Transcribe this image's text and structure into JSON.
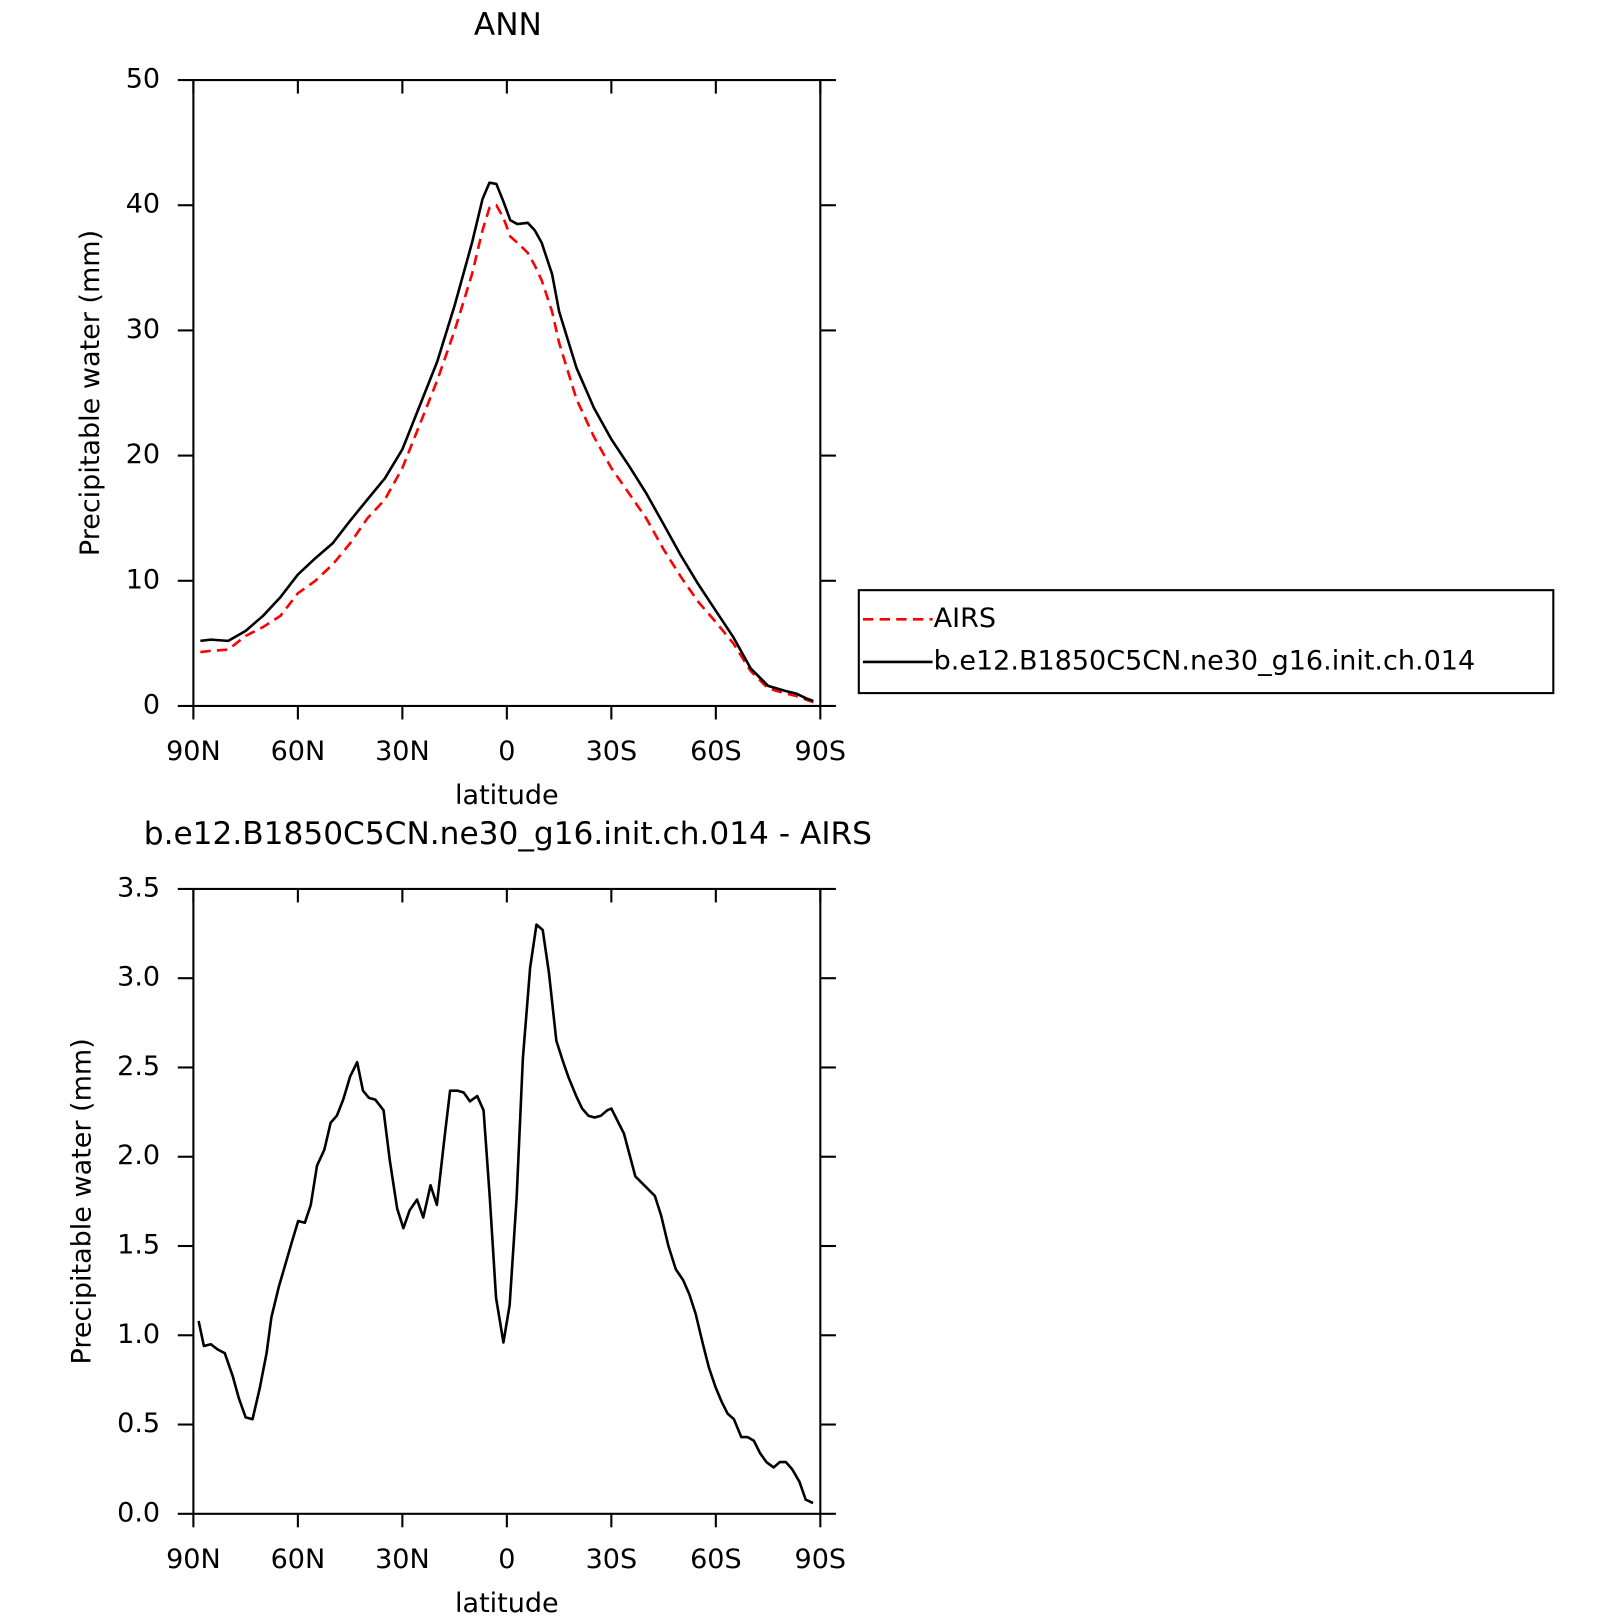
{
  "chart_data": [
    {
      "type": "line",
      "title": "ANN",
      "x_label": "latitude",
      "y_label": "Precipitable water (mm)",
      "x": [
        88,
        85,
        80,
        75,
        70,
        65,
        60,
        55,
        50,
        45,
        40,
        35,
        30,
        25,
        20,
        15,
        10,
        7,
        5,
        3,
        1,
        -1,
        -3,
        -6,
        -8,
        -10,
        -13,
        -15,
        -20,
        -25,
        -30,
        -35,
        -40,
        -45,
        -50,
        -55,
        -60,
        -65,
        -70,
        -75,
        -80,
        -83,
        -86,
        -88
      ],
      "series": [
        {
          "name": "AIRS",
          "color": "#ff0000",
          "line_style": "dashed",
          "values": [
            4.3,
            4.4,
            4.5,
            5.6,
            6.3,
            7.2,
            9.0,
            10.0,
            11.3,
            13.0,
            15.0,
            16.5,
            19.0,
            22.5,
            26.0,
            30.0,
            34.5,
            38.0,
            39.8,
            40.0,
            39.0,
            37.5,
            37.0,
            36.2,
            35.2,
            34.0,
            31.5,
            29.0,
            24.5,
            21.5,
            19.0,
            17.0,
            15.0,
            12.5,
            10.3,
            8.3,
            6.7,
            5.0,
            2.8,
            1.4,
            1.0,
            0.8,
            0.5,
            0.3
          ]
        },
        {
          "name": "b.e12.B1850C5CN.ne30_g16.init.ch.014",
          "color": "#000000",
          "line_style": "solid",
          "values": [
            5.2,
            5.3,
            5.2,
            6.0,
            7.2,
            8.7,
            10.5,
            11.8,
            13.0,
            14.8,
            16.5,
            18.2,
            20.5,
            24.0,
            27.5,
            32.0,
            37.0,
            40.5,
            41.8,
            41.7,
            40.3,
            38.8,
            38.5,
            38.6,
            38.0,
            37.0,
            34.5,
            31.5,
            27.0,
            23.8,
            21.3,
            19.2,
            17.0,
            14.5,
            12.0,
            9.7,
            7.6,
            5.5,
            3.0,
            1.6,
            1.2,
            1.0,
            0.6,
            0.4
          ]
        }
      ],
      "xlim": [
        90,
        -90
      ],
      "xticks": [
        {
          "value": 90,
          "label": "90N"
        },
        {
          "value": 60,
          "label": "60N"
        },
        {
          "value": 30,
          "label": "30N"
        },
        0,
        {
          "value": -30,
          "label": "30S"
        },
        {
          "value": -60,
          "label": "60S"
        },
        {
          "value": -90,
          "label": "90S"
        }
      ],
      "ylim": [
        0,
        50
      ],
      "yticks": [
        0,
        10,
        20,
        30,
        40,
        50
      ],
      "legend_position": "right"
    },
    {
      "type": "line",
      "title": "b.e12.B1850C5CN.ne30_g16.init.ch.014 - AIRS",
      "x_label": "latitude",
      "y_label": "Precipitable water (mm)",
      "x": [
        88.5,
        87,
        85,
        83,
        81,
        78.7,
        77,
        75,
        73,
        71,
        69,
        67.6,
        65.5,
        63.4,
        61.6,
        59.9,
        58,
        56.3,
        54.5,
        52.4,
        50.6,
        48.8,
        47,
        45,
        43,
        41.3,
        39.6,
        37.8,
        35.4,
        33.6,
        31.5,
        29.7,
        27.9,
        25.8,
        24,
        21.9,
        20.1,
        18,
        16.3,
        14.2,
        12.4,
        10.6,
        8.5,
        6.7,
        4.9,
        3.1,
        1,
        -0.8,
        -2.8,
        -4.6,
        -6.7,
        -8.5,
        -10.3,
        -12.1,
        -14.2,
        -16,
        -17.8,
        -19.9,
        -21.6,
        -23.4,
        -25.2,
        -27,
        -28.8,
        -30,
        -33.6,
        -36.9,
        -42.5,
        -44.3,
        -46.4,
        -48.5,
        -50.6,
        -52.4,
        -54.2,
        -56.3,
        -58,
        -59.9,
        -61.6,
        -63.4,
        -65.2,
        -67.3,
        -69.1,
        -70.9,
        -72.7,
        -74.5,
        -76.6,
        -78.4,
        -80.1,
        -81.9,
        -84,
        -85.8,
        -87.9
      ],
      "series": [
        {
          "color": "#000000",
          "line_style": "solid",
          "values": [
            1.08,
            0.94,
            0.95,
            0.92,
            0.9,
            0.77,
            0.65,
            0.54,
            0.53,
            0.7,
            0.9,
            1.1,
            1.27,
            1.41,
            1.53,
            1.64,
            1.63,
            1.73,
            1.95,
            2.04,
            2.19,
            2.23,
            2.32,
            2.45,
            2.53,
            2.37,
            2.33,
            2.32,
            2.26,
            1.98,
            1.71,
            1.6,
            1.7,
            1.76,
            1.66,
            1.84,
            1.73,
            2.09,
            2.37,
            2.37,
            2.36,
            2.31,
            2.34,
            2.26,
            1.77,
            1.21,
            0.96,
            1.17,
            1.77,
            2.55,
            3.06,
            3.3,
            3.27,
            3.03,
            2.65,
            2.54,
            2.44,
            2.34,
            2.27,
            2.23,
            2.22,
            2.23,
            2.26,
            2.27,
            2.13,
            1.89,
            1.78,
            1.67,
            1.5,
            1.37,
            1.31,
            1.23,
            1.12,
            0.95,
            0.82,
            0.71,
            0.63,
            0.56,
            0.53,
            0.43,
            0.43,
            0.41,
            0.34,
            0.29,
            0.26,
            0.29,
            0.29,
            0.25,
            0.18,
            0.08,
            0.06
          ]
        }
      ],
      "xlim": [
        90,
        -90
      ],
      "xticks": [
        {
          "value": 90,
          "label": "90N"
        },
        {
          "value": 60,
          "label": "60N"
        },
        {
          "value": 30,
          "label": "30N"
        },
        0,
        {
          "value": -30,
          "label": "30S"
        },
        {
          "value": -60,
          "label": "60S"
        },
        {
          "value": -90,
          "label": "90S"
        }
      ],
      "ylim": [
        0,
        3.5
      ],
      "yticks": [
        {
          "value": 0,
          "label": "0.0"
        },
        0.5,
        {
          "value": 1,
          "label": "1.0"
        },
        1.5,
        {
          "value": 2,
          "label": "2.0"
        },
        2.5,
        {
          "value": 3,
          "label": "3.0"
        },
        3.5
      ]
    }
  ]
}
